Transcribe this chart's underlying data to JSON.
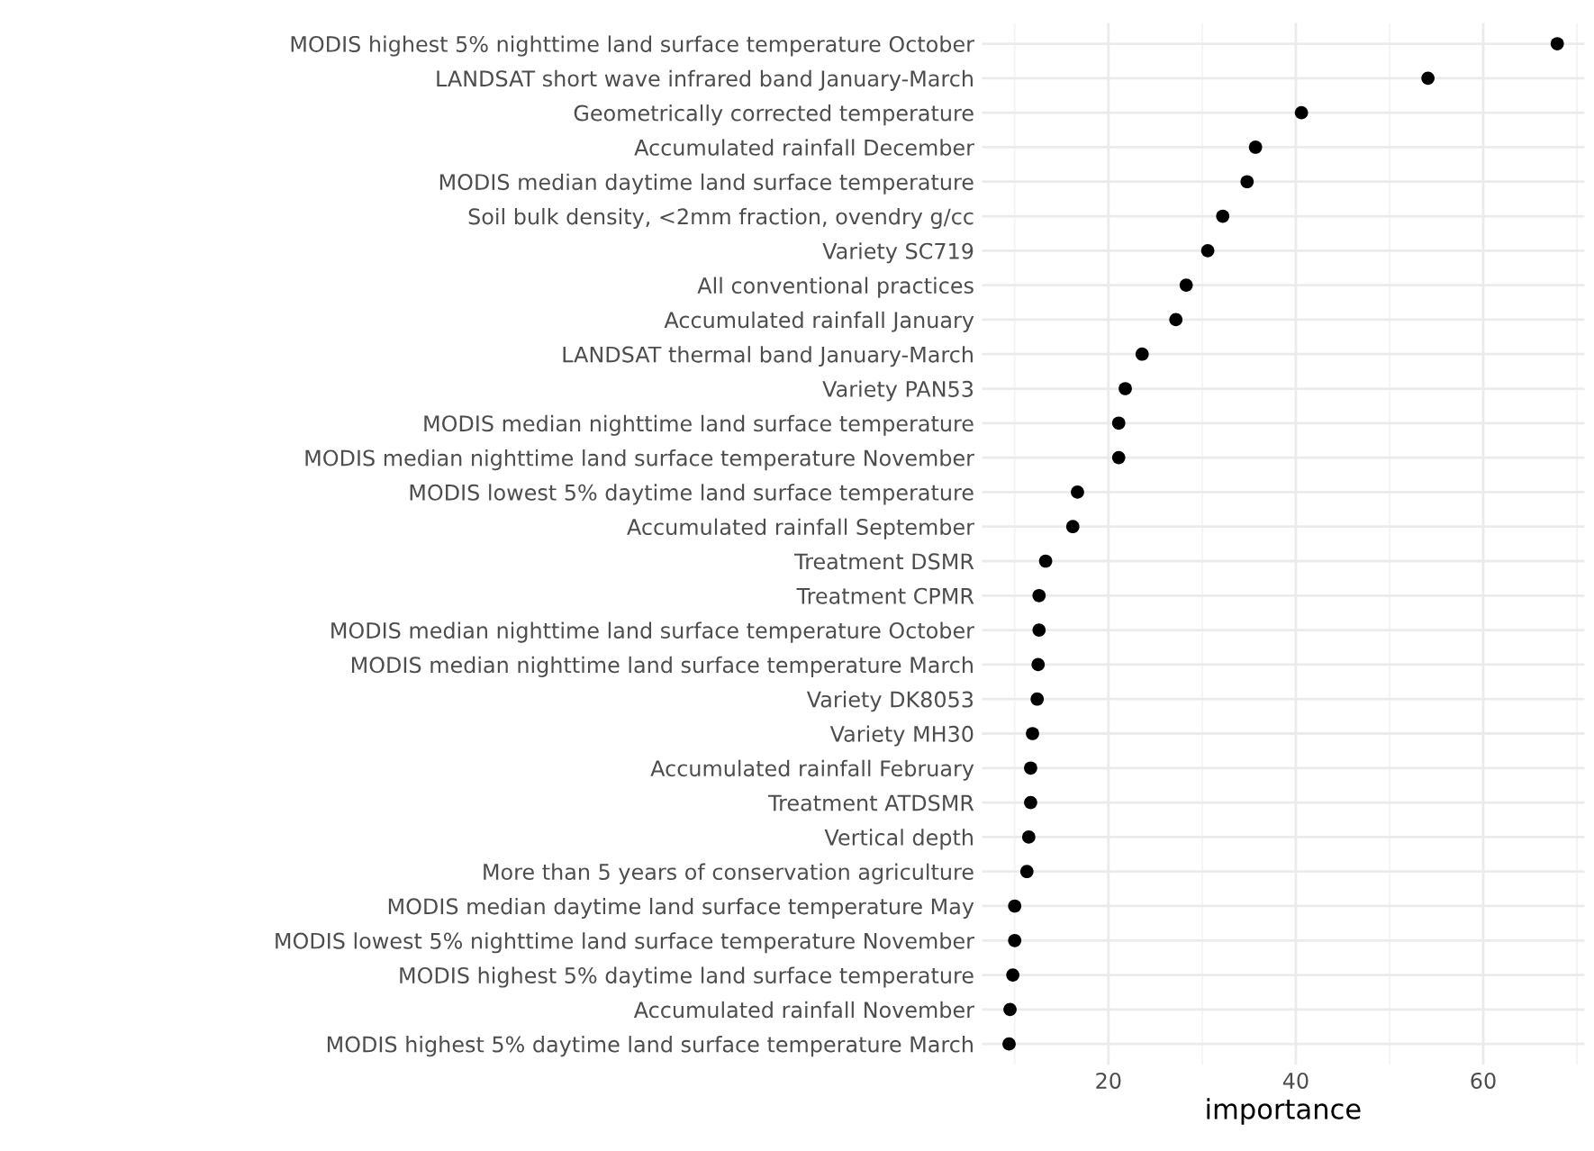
{
  "chart_data": {
    "type": "scatter",
    "xlabel": "importance",
    "categories": [
      "MODIS highest 5% nighttime land surface temperature October",
      "LANDSAT short wave infrared band January-March",
      "Geometrically corrected temperature",
      "Accumulated rainfall December",
      "MODIS median daytime land surface temperature",
      "Soil bulk density, <2mm fraction, ovendry g/cc",
      "Variety SC719",
      "All conventional practices",
      "Accumulated rainfall January",
      "LANDSAT thermal band January-March",
      "Variety PAN53",
      "MODIS median nighttime land surface temperature",
      "MODIS median nighttime land surface temperature November",
      "MODIS lowest 5% daytime land surface temperature",
      "Accumulated rainfall September",
      "Treatment DSMR",
      "Treatment CPMR",
      "MODIS median nighttime land surface temperature October",
      "MODIS median nighttime land surface temperature March",
      "Variety DK8053",
      "Variety MH30",
      "Accumulated rainfall February",
      "Treatment ATDSMR",
      "Vertical depth",
      "More than 5 years of conservation agriculture",
      "MODIS median daytime land surface temperature May",
      "MODIS lowest 5% nighttime land surface temperature November",
      "MODIS highest 5% daytime land surface temperature",
      "Accumulated rainfall November",
      "MODIS highest 5% daytime land surface temperature March"
    ],
    "orientation": "horizontal",
    "values": [
      67.9,
      54.1,
      40.6,
      35.7,
      34.8,
      32.2,
      30.6,
      28.3,
      27.2,
      23.6,
      21.8,
      21.1,
      21.1,
      16.7,
      16.2,
      13.3,
      12.6,
      12.6,
      12.5,
      12.4,
      11.9,
      11.7,
      11.7,
      11.5,
      11.3,
      10.0,
      10.0,
      9.8,
      9.5,
      9.4
    ],
    "color": "#000000",
    "marker": "circle",
    "xlim": [
      6.5,
      70.8
    ],
    "xticks": [
      20,
      40,
      60
    ],
    "grid": true
  }
}
